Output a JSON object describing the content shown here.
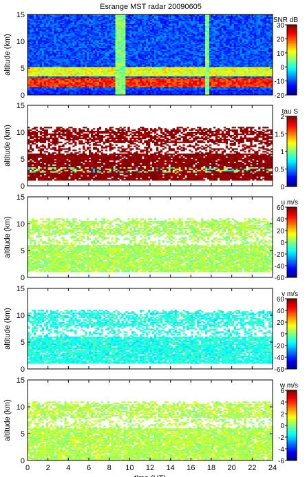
{
  "title": "Esrange MST radar 20090605",
  "chart_data": [
    {
      "type": "heatmap",
      "quantity": "SNR",
      "ylabel": "altitude (km)",
      "ylim": [
        0,
        15
      ],
      "yticks": [
        0,
        5,
        10,
        15
      ],
      "xlim": [
        0,
        24
      ],
      "colorbar": {
        "label": "SNR dB",
        "range": [
          -20,
          30
        ],
        "ticks": [
          30,
          20,
          10,
          0,
          -10,
          -20
        ]
      },
      "background_value": -10,
      "features": [
        {
          "desc": "strong echo layer",
          "x_range": [
            0,
            24
          ],
          "y_range": [
            1.5,
            3.3
          ],
          "value": 22
        },
        {
          "desc": "enhanced layer",
          "x_range": [
            0,
            24
          ],
          "y_range": [
            3.5,
            5.2
          ],
          "value": 10
        },
        {
          "desc": "vertical interference stripe",
          "x_range": [
            8.7,
            9.6
          ],
          "y_range": [
            0,
            15
          ],
          "value": 5
        },
        {
          "desc": "vertical interference stripe",
          "x_range": [
            17.4,
            17.8
          ],
          "y_range": [
            0,
            15
          ],
          "value": 5
        }
      ]
    },
    {
      "type": "heatmap",
      "quantity": "tau",
      "ylabel": "altitude (km)",
      "ylim": [
        0,
        15
      ],
      "yticks": [
        0,
        5,
        10,
        15
      ],
      "xlim": [
        0,
        24
      ],
      "colorbar": {
        "label": "tau S",
        "range": [
          0,
          2
        ],
        "ticks": [
          2,
          1.5,
          1,
          0.5,
          0
        ]
      },
      "dominant_value": 2,
      "data_region_km": [
        1,
        11
      ],
      "features": [
        {
          "desc": "low values near layer",
          "x_range": [
            0,
            24
          ],
          "y_range": [
            2.5,
            3.5
          ],
          "value": 1.0
        }
      ]
    },
    {
      "type": "heatmap",
      "quantity": "u",
      "ylabel": "altitude (km)",
      "ylim": [
        0,
        15
      ],
      "yticks": [
        0,
        5,
        10,
        15
      ],
      "xlim": [
        0,
        24
      ],
      "colorbar": {
        "label": "u m/s",
        "range": [
          -60,
          60
        ],
        "ticks": [
          60,
          40,
          20,
          0,
          -20,
          -40,
          -60
        ]
      },
      "dominant_value": 5,
      "data_region_km": [
        1,
        11
      ]
    },
    {
      "type": "heatmap",
      "quantity": "v",
      "ylabel": "altitude (km)",
      "ylim": [
        0,
        15
      ],
      "yticks": [
        0,
        5,
        10,
        15
      ],
      "xlim": [
        0,
        24
      ],
      "colorbar": {
        "label": "v m/s",
        "range": [
          -60,
          60
        ],
        "ticks": [
          60,
          40,
          20,
          0,
          -20,
          -40,
          -60
        ]
      },
      "dominant_value": -12,
      "data_region_km": [
        1,
        11
      ]
    },
    {
      "type": "heatmap",
      "quantity": "w",
      "ylabel": "altitude (km)",
      "ylim": [
        0,
        15
      ],
      "yticks": [
        0,
        5,
        10,
        15
      ],
      "xlim": [
        0,
        24
      ],
      "xlabel": "time (UT)",
      "xticks": [
        0,
        2,
        4,
        6,
        8,
        10,
        12,
        14,
        16,
        18,
        20,
        22,
        24
      ],
      "colorbar": {
        "label": "w m/s",
        "range": [
          -6,
          6
        ],
        "ticks": [
          6,
          4,
          2,
          0,
          -2,
          -4,
          -6
        ]
      },
      "dominant_value": 0.6,
      "data_region_km": [
        0,
        11
      ]
    }
  ]
}
